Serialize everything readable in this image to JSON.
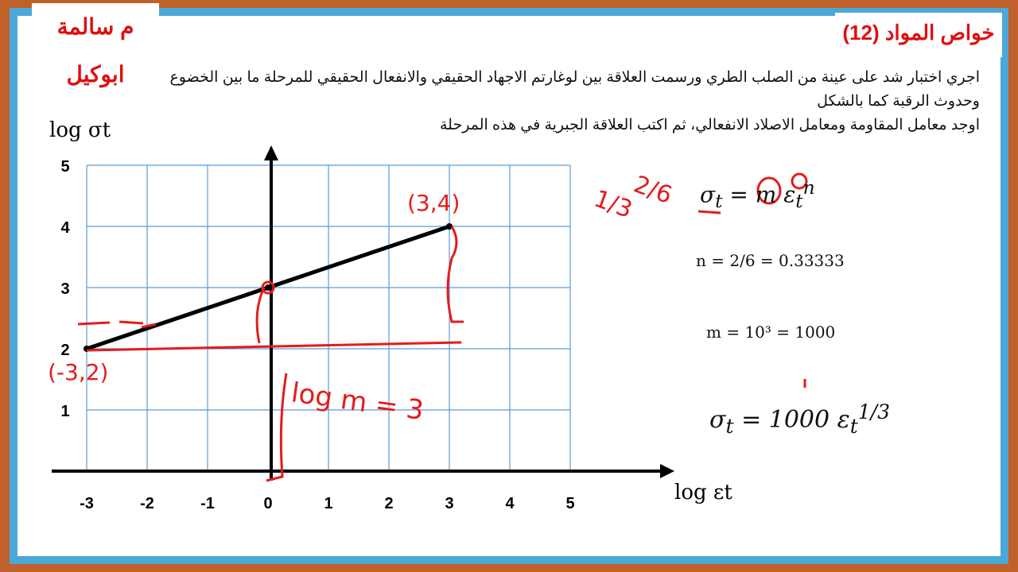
{
  "header": {
    "author": "م سالمة ابوكيل",
    "lesson_title": "خواص المواد (12)"
  },
  "question": {
    "line1": "اجري اختبار شد على عينة من الصلب الطري ورسمت العلاقة بين لوغارتم الاجهاد الحقيقي والانفعال الحقيقي للمرحلة ما بين الخضوع",
    "line2": "وحدوث الرقبة كما بالشكل",
    "line3": "اوجد معامل المقاومة ومعامل الاصلاد الانفعالي، ثم اكتب العلاقة الجبرية في هذه المرحلة"
  },
  "solution": {
    "formula": "σt = m εt^n",
    "n_line": "n = 2/6 = 0.33333",
    "m_line": "m = 10³ = 1000",
    "result": "σt = 1000 εt^(1/3)"
  },
  "annotations": {
    "point_a": "(3,4)",
    "point_b": "(-3,2)",
    "log_m": "log m = 3",
    "ratio_1": "1/3",
    "ratio_2": "2/6"
  },
  "colors": {
    "annotation": "#e41b1b",
    "grid": "#5b9bd5",
    "line": "#000000"
  },
  "chart_data": {
    "type": "line",
    "xlabel": "log εt",
    "ylabel": "log σt",
    "x_ticks": [
      -3,
      -2,
      -1,
      0,
      1,
      2,
      3,
      4,
      5
    ],
    "y_ticks": [
      1,
      2,
      3,
      4,
      5
    ],
    "xlim": [
      -3,
      5
    ],
    "ylim": [
      0,
      5
    ],
    "grid": true,
    "series": [
      {
        "x": [
          -3,
          0,
          3
        ],
        "y": [
          2,
          3,
          4
        ]
      }
    ]
  }
}
